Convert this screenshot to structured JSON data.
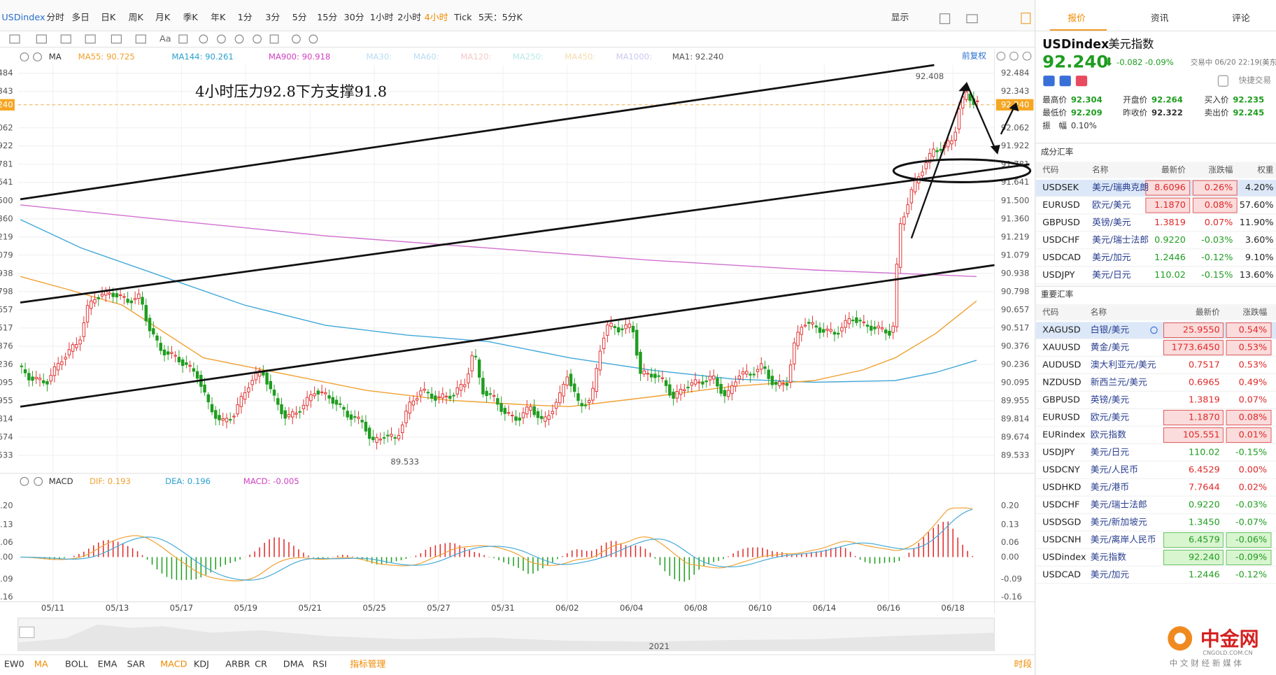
{
  "toolbar": {
    "symbol": "USDindex",
    "periods": [
      "分时",
      "多日",
      "日K",
      "周K",
      "月K",
      "季K",
      "年K",
      "1分",
      "3分",
      "5分",
      "15分",
      "30分",
      "1小时",
      "2小时",
      "4小时",
      "Tick",
      "5天：5分K"
    ],
    "display": "显示",
    "tools": [
      "Aa"
    ]
  },
  "indicators": {
    "ma": "MA",
    "items": [
      "MA55: 90.725",
      "MA144: 90.261",
      "MA900: 90.918",
      "MA30:",
      "MA60:",
      "MA120:",
      "MA250:",
      "MA450:",
      "MA1000:",
      "MA1: 92.240"
    ],
    "restore": "前复权"
  },
  "price_axis": [
    "92.484",
    "92.343",
    "92.062",
    "91.922",
    "91.781",
    "91.641",
    "91.500",
    "91.360",
    "91.219",
    "91.079",
    "90.938",
    "90.798",
    "90.657",
    "90.517",
    "90.376",
    "90.236",
    "90.095",
    "89.955",
    "89.814",
    "89.674",
    "89.533"
  ],
  "current_price": "92.240",
  "annotations": {
    "note": "4小时压力92.8下方支撑91.8",
    "high": "92.408",
    "low": "89.533"
  },
  "macd": {
    "label": "MACD",
    "items": [
      "DIF: 0.193",
      "DEA: 0.196",
      "MACD: -0.005"
    ],
    "axis": [
      "0.20",
      "0.13",
      "0.06",
      "0.00",
      "-0.09",
      "-0.16"
    ]
  },
  "dates": [
    "05/11",
    "05/13",
    "05/17",
    "05/19",
    "05/21",
    "05/25",
    "05/27",
    "05/31",
    "06/02",
    "06/04",
    "06/08",
    "06/10",
    "06/14",
    "06/16",
    "06/18"
  ],
  "year": "2021",
  "bottom_tabs": [
    "EW0",
    "MA",
    "BOLL",
    "EMA",
    "SAR",
    "MACD",
    "KDJ",
    "ARBR",
    "CR",
    "DMA",
    "RSI",
    "指标管理"
  ],
  "period_tab": "时段",
  "panel": {
    "tabs": [
      "报价",
      "资讯",
      "评论"
    ],
    "symbol": "USDindex",
    "name": "美元指数",
    "price": "92.240",
    "change": "-0.082",
    "change_pct": "-0.09%",
    "status": "交易中 06/20 22:19(美东",
    "quick": "快捷交易",
    "stats": [
      [
        "最高价",
        "92.304"
      ],
      [
        "开盘价",
        "92.264"
      ],
      [
        "买入价",
        "92.235"
      ],
      [
        "最低价",
        "92.209"
      ],
      [
        "昨收价",
        "92.322"
      ],
      [
        "卖出价",
        "92.245"
      ]
    ],
    "amplitude_label": "振　幅",
    "amplitude": "0.10%"
  },
  "components": {
    "title": "成分汇率",
    "headers": [
      "代码",
      "名称",
      "最新价",
      "涨跌幅",
      "权重"
    ],
    "rows": [
      [
        "USDSEK",
        "美元/瑞典克朗",
        "8.6096",
        "0.26%",
        "4.20%"
      ],
      [
        "EURUSD",
        "欧元/美元",
        "1.1870",
        "0.08%",
        "57.60%"
      ],
      [
        "GBPUSD",
        "英镑/美元",
        "1.3819",
        "0.07%",
        "11.90%"
      ],
      [
        "USDCHF",
        "美元/瑞士法郎",
        "0.9220",
        "-0.03%",
        "3.60%"
      ],
      [
        "USDCAD",
        "美元/加元",
        "1.2446",
        "-0.12%",
        "9.10%"
      ],
      [
        "USDJPY",
        "美元/日元",
        "110.02",
        "-0.15%",
        "13.60%"
      ]
    ]
  },
  "major": {
    "title": "重要汇率",
    "headers": [
      "代码",
      "名称",
      "最新价",
      "涨跌幅"
    ],
    "rows": [
      [
        "XAGUSD",
        "白银/美元",
        "25.9550",
        "0.54%"
      ],
      [
        "XAUUSD",
        "黄金/美元",
        "1773.6450",
        "0.53%"
      ],
      [
        "AUDUSD",
        "澳大利亚元/美元",
        "0.7517",
        "0.53%"
      ],
      [
        "NZDUSD",
        "新西兰元/美元",
        "0.6965",
        "0.49%"
      ],
      [
        "GBPUSD",
        "英镑/美元",
        "1.3819",
        "0.07%"
      ],
      [
        "EURUSD",
        "欧元/美元",
        "1.1870",
        "0.08%"
      ],
      [
        "EURindex",
        "欧元指数",
        "105.551",
        "0.01%"
      ],
      [
        "USDJPY",
        "美元/日元",
        "110.02",
        "-0.15%"
      ],
      [
        "USDCNY",
        "美元/人民币",
        "6.4529",
        "0.00%"
      ],
      [
        "USDHKD",
        "美元/港币",
        "7.7644",
        "0.02%"
      ],
      [
        "USDCHF",
        "美元/瑞士法郎",
        "0.9220",
        "-0.03%"
      ],
      [
        "USDSGD",
        "美元/新加坡元",
        "1.3450",
        "-0.07%"
      ],
      [
        "USDCNH",
        "美元/离岸人民币",
        "6.4579",
        "-0.06%"
      ],
      [
        "USDindex",
        "美元指数",
        "92.240",
        "-0.09%"
      ],
      [
        "USDCAD",
        "美元/加元",
        "1.2446",
        "-0.12%"
      ]
    ]
  },
  "logo": {
    "name": "中金网",
    "domain": "CNGOLD.COM.CN",
    "slogan": "中 文 财 经 新 媒 体"
  }
}
